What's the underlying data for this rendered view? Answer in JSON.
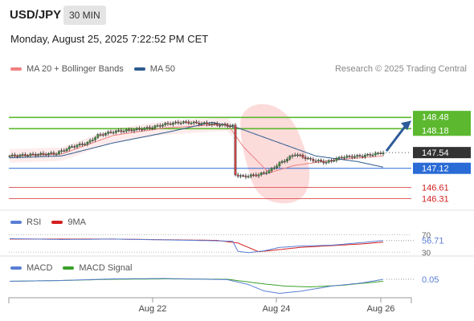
{
  "header": {
    "symbol": "USD/JPY",
    "timeframe": "30 MIN",
    "datetime": "Monday, August 25, 2025 7:22:52 PM CET"
  },
  "legend": {
    "main": [
      {
        "label": "MA 20 + Bollinger Bands",
        "color": "#f08080"
      },
      {
        "label": "MA 50",
        "color": "#2d5b8f"
      }
    ],
    "research": "Research © 2025 Trading Central",
    "rsi": [
      {
        "label": "RSI",
        "color": "#5a7fd4"
      },
      {
        "label": "9MA",
        "color": "#d42020"
      }
    ],
    "macd": [
      {
        "label": "MACD",
        "color": "#5a7fd4"
      },
      {
        "label": "MACD Signal",
        "color": "#3aa02a"
      }
    ]
  },
  "colors": {
    "resistance": "#5cb82e",
    "pivot": "#2a6bd6",
    "support": "#e06060",
    "price_label_bg": "#333333",
    "arrow": "#2d5b9a"
  },
  "chart_data": [
    {
      "type": "candlestick",
      "title": "USD/JPY 30 MIN",
      "x_labels": [
        "Aug 22",
        "Aug 24",
        "Aug 26"
      ],
      "ylim": [
        146.15,
        149.0
      ],
      "current_price": 147.54,
      "levels": [
        {
          "value": 148.48,
          "kind": "resistance",
          "label": "148.48"
        },
        {
          "value": 148.18,
          "kind": "resistance",
          "label": "148.18"
        },
        {
          "value": 147.54,
          "kind": "last",
          "label": "147.54"
        },
        {
          "value": 147.12,
          "kind": "pivot",
          "label": "147.12"
        },
        {
          "value": 146.61,
          "kind": "support",
          "label": "146.61"
        },
        {
          "value": 146.31,
          "kind": "support",
          "label": "146.31"
        }
      ],
      "price_anchors": [
        [
          0,
          147.45
        ],
        [
          8,
          147.48
        ],
        [
          18,
          147.52
        ],
        [
          24,
          147.7
        ],
        [
          30,
          147.8
        ],
        [
          34,
          148.0
        ],
        [
          40,
          148.1
        ],
        [
          48,
          148.15
        ],
        [
          54,
          148.2
        ],
        [
          60,
          148.3
        ],
        [
          66,
          148.35
        ],
        [
          70,
          148.34
        ],
        [
          78,
          148.3
        ],
        [
          86,
          148.25
        ],
        [
          87,
          146.95
        ],
        [
          90,
          146.9
        ],
        [
          96,
          146.95
        ],
        [
          100,
          147.05
        ],
        [
          104,
          147.25
        ],
        [
          110,
          147.5
        ],
        [
          116,
          147.35
        ],
        [
          122,
          147.28
        ],
        [
          128,
          147.42
        ],
        [
          136,
          147.45
        ],
        [
          144,
          147.54
        ]
      ],
      "ma20_anchors": [
        [
          0,
          147.45
        ],
        [
          20,
          147.5
        ],
        [
          40,
          148.0
        ],
        [
          60,
          148.2
        ],
        [
          84,
          148.3
        ],
        [
          90,
          147.7
        ],
        [
          100,
          147.0
        ],
        [
          110,
          147.2
        ],
        [
          126,
          147.35
        ],
        [
          144,
          147.45
        ]
      ],
      "ma50_anchors": [
        [
          0,
          147.4
        ],
        [
          20,
          147.45
        ],
        [
          40,
          147.8
        ],
        [
          62,
          148.1
        ],
        [
          78,
          148.35
        ],
        [
          88,
          148.2
        ],
        [
          104,
          147.8
        ],
        [
          118,
          147.45
        ],
        [
          134,
          147.3
        ],
        [
          144,
          147.15
        ]
      ],
      "bollinger_band": {
        "upper": 148.95,
        "lower": 146.2,
        "center_index": 97
      },
      "projection": {
        "from": 147.54,
        "to": 148.48
      }
    },
    {
      "type": "line",
      "title": "RSI",
      "ylim": [
        25,
        80
      ],
      "reference_levels": [
        70,
        30
      ],
      "last_value": 56.71,
      "series": [
        {
          "name": "RSI",
          "anchors": [
            [
              0,
              61
            ],
            [
              20,
              59
            ],
            [
              40,
              60
            ],
            [
              62,
              58
            ],
            [
              80,
              56
            ],
            [
              86,
              55
            ],
            [
              88,
              32
            ],
            [
              92,
              29
            ],
            [
              98,
              33
            ],
            [
              104,
              41
            ],
            [
              112,
              44
            ],
            [
              124,
              46
            ],
            [
              136,
              52
            ],
            [
              144,
              56.71
            ]
          ]
        },
        {
          "name": "9MA",
          "anchors": [
            [
              0,
              60
            ],
            [
              40,
              60
            ],
            [
              80,
              57
            ],
            [
              88,
              51
            ],
            [
              96,
              31
            ],
            [
              104,
              36
            ],
            [
              112,
              41
            ],
            [
              124,
              45
            ],
            [
              136,
              49
            ],
            [
              144,
              53
            ]
          ]
        }
      ]
    },
    {
      "type": "line",
      "title": "MACD",
      "ylim": [
        -0.35,
        0.15
      ],
      "last_value": 0.05,
      "series": [
        {
          "name": "MACD",
          "anchors": [
            [
              0,
              0.0
            ],
            [
              20,
              0.02
            ],
            [
              40,
              0.06
            ],
            [
              60,
              0.07
            ],
            [
              84,
              0.04
            ],
            [
              92,
              -0.08
            ],
            [
              98,
              -0.24
            ],
            [
              104,
              -0.3
            ],
            [
              112,
              -0.25
            ],
            [
              124,
              -0.12
            ],
            [
              136,
              -0.04
            ],
            [
              144,
              0.05
            ]
          ]
        },
        {
          "name": "MACD Signal",
          "anchors": [
            [
              0,
              0.0
            ],
            [
              20,
              0.02
            ],
            [
              40,
              0.05
            ],
            [
              60,
              0.06
            ],
            [
              84,
              0.05
            ],
            [
              96,
              -0.05
            ],
            [
              106,
              -0.12
            ],
            [
              116,
              -0.14
            ],
            [
              128,
              -0.1
            ],
            [
              144,
              0.0
            ]
          ]
        }
      ]
    }
  ]
}
